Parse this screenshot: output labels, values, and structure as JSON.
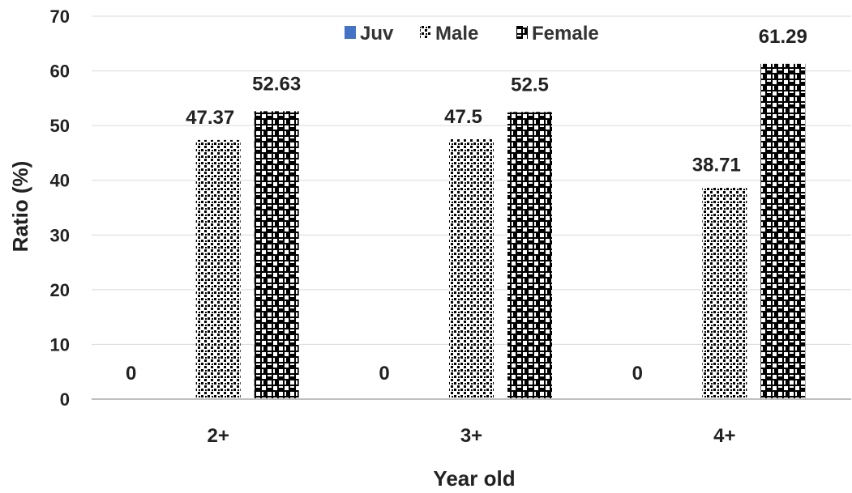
{
  "chart_data": {
    "type": "bar",
    "categories": [
      "2+",
      "3+",
      "4+"
    ],
    "series": [
      {
        "name": "Juv",
        "values": [
          0,
          0,
          0
        ],
        "color": "#4472C4",
        "pattern": "solid"
      },
      {
        "name": "Male",
        "values": [
          47.37,
          47.5,
          38.71
        ],
        "color": "#000000",
        "pattern": "small-checker"
      },
      {
        "name": "Female",
        "values": [
          52.63,
          52.5,
          61.29
        ],
        "color": "#000000",
        "pattern": "large-checker"
      }
    ],
    "data_labels": [
      [
        "0",
        "0",
        "0"
      ],
      [
        "47.37",
        "47.5",
        "38.71"
      ],
      [
        "52.63",
        "52.5",
        "61.29"
      ]
    ],
    "yticks": [
      "0",
      "10",
      "20",
      "30",
      "40",
      "50",
      "60",
      "70"
    ],
    "ylim": [
      0,
      70
    ],
    "xlabel": "Year old",
    "ylabel": "Ratio (%)",
    "title": "",
    "grid": true,
    "legend_position": "top-center"
  }
}
